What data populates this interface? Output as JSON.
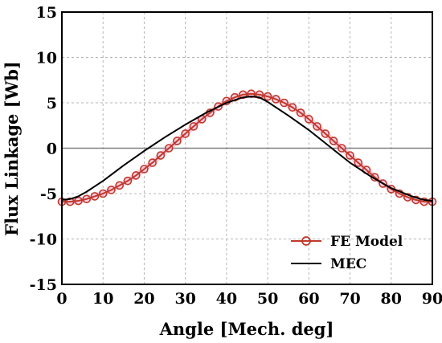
{
  "chart_data": {
    "type": "line",
    "title": "",
    "xlabel": "Angle [Mech. deg]",
    "ylabel": "Flux Linkage [Wb]",
    "xlim": [
      0,
      90
    ],
    "ylim": [
      -15,
      15
    ],
    "xticks": [
      0,
      10,
      20,
      30,
      40,
      50,
      60,
      70,
      80,
      90
    ],
    "yticks": [
      15,
      10,
      5,
      0,
      -5,
      -10,
      -15
    ],
    "grid": true,
    "legend_position": "bottom-right",
    "series": [
      {
        "name": "FE Model",
        "color": "#c0392b",
        "marker": "circle-open",
        "x": [
          0,
          2,
          4,
          6,
          8,
          10,
          12,
          14,
          16,
          18,
          20,
          22,
          24,
          26,
          28,
          30,
          32,
          34,
          36,
          38,
          40,
          42,
          44,
          46,
          48,
          50,
          52,
          54,
          56,
          58,
          60,
          62,
          64,
          66,
          68,
          70,
          72,
          74,
          76,
          78,
          80,
          82,
          84,
          86,
          88,
          90
        ],
        "y": [
          -5.9,
          -5.9,
          -5.8,
          -5.6,
          -5.3,
          -5.0,
          -4.6,
          -4.1,
          -3.6,
          -3.0,
          -2.3,
          -1.6,
          -0.8,
          0.0,
          0.8,
          1.6,
          2.4,
          3.2,
          3.9,
          4.6,
          5.2,
          5.6,
          5.9,
          6.0,
          5.9,
          5.7,
          5.4,
          5.0,
          4.5,
          3.9,
          3.2,
          2.4,
          1.6,
          0.8,
          0.0,
          -0.8,
          -1.6,
          -2.4,
          -3.2,
          -3.9,
          -4.5,
          -5.0,
          -5.4,
          -5.7,
          -5.9,
          -5.9
        ]
      },
      {
        "name": "MEC",
        "color": "#000000",
        "marker": "none",
        "x": [
          0,
          2,
          4,
          6,
          10,
          15,
          20,
          25,
          30,
          35,
          40,
          44,
          46,
          48,
          50,
          55,
          60,
          65,
          70,
          75,
          80,
          85,
          88,
          90
        ],
        "y": [
          -5.7,
          -5.6,
          -5.3,
          -4.8,
          -3.6,
          -1.9,
          -0.3,
          1.2,
          2.6,
          3.9,
          5.0,
          5.6,
          5.7,
          5.6,
          5.1,
          3.6,
          2.0,
          0.2,
          -1.6,
          -3.1,
          -4.4,
          -5.3,
          -5.7,
          -5.8
        ]
      }
    ]
  }
}
